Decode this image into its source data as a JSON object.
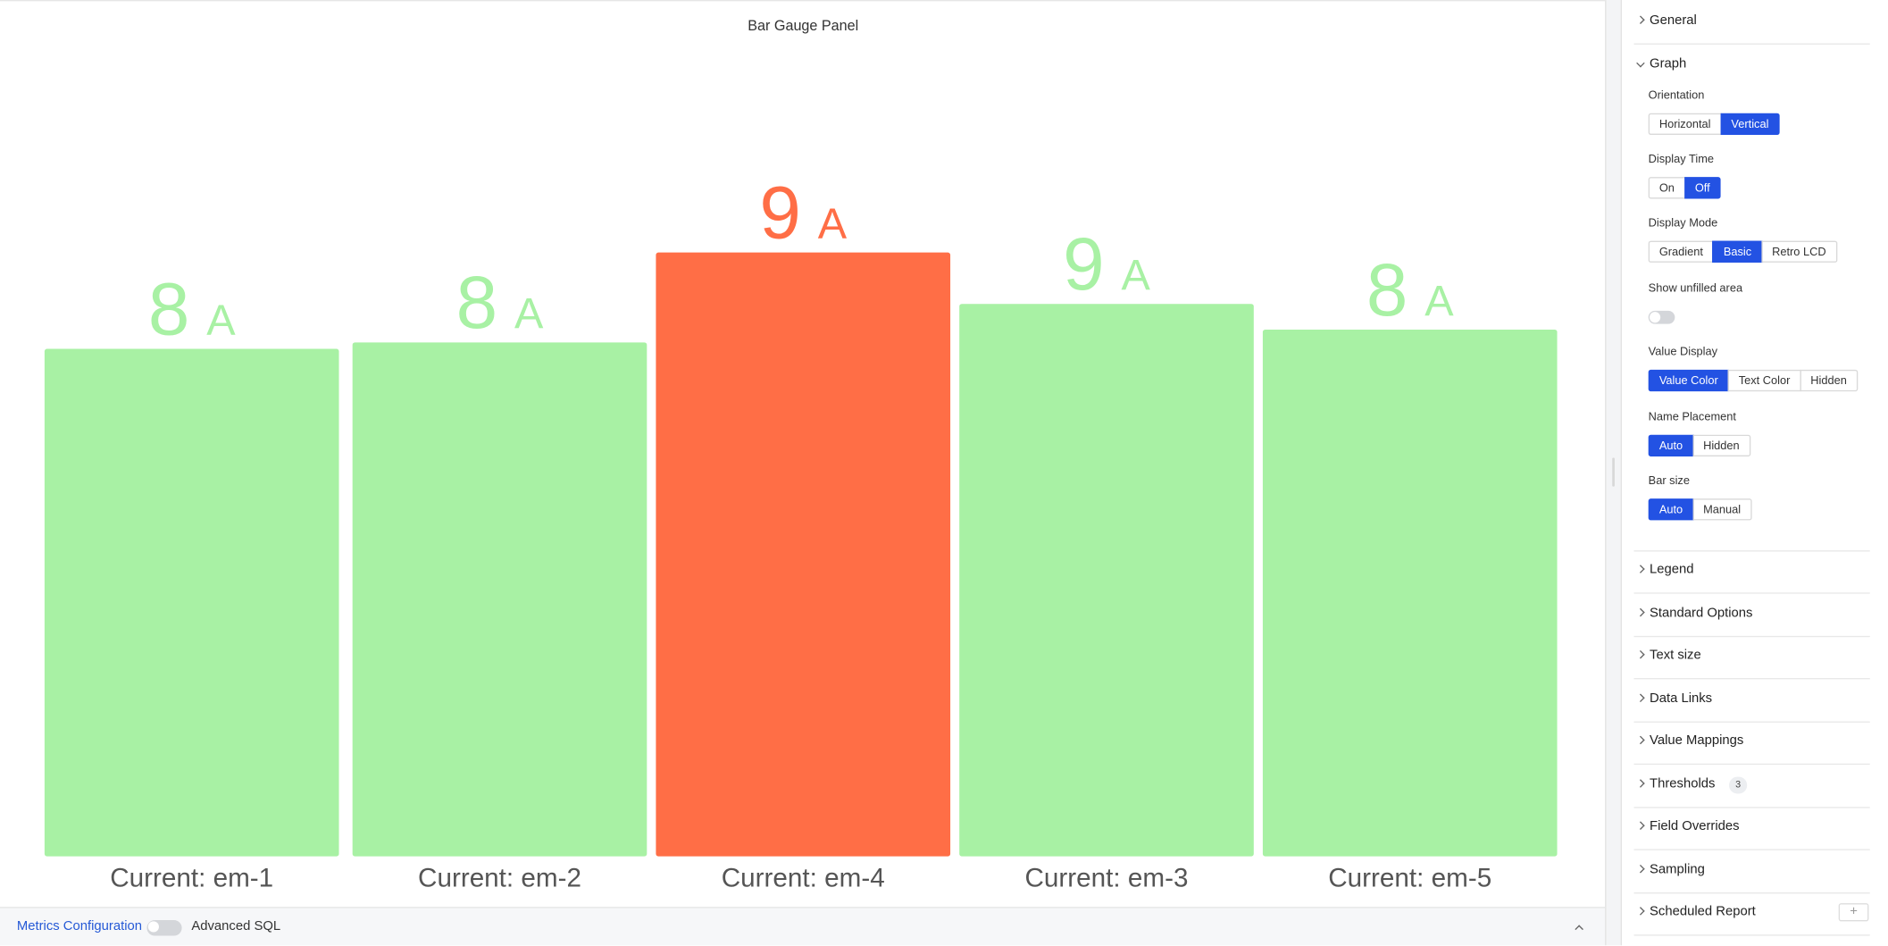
{
  "chart_data": {
    "type": "bar",
    "title": "Bar Gauge Panel",
    "categories": [
      "Current: em-1",
      "Current: em-2",
      "Current: em-4",
      "Current: em-3",
      "Current: em-5"
    ],
    "values": [
      7.9,
      8.0,
      9.4,
      8.6,
      8.2
    ],
    "value_labels": [
      "8",
      "8",
      "9",
      "9",
      "8"
    ],
    "unit": "A",
    "colors": [
      "#a8f1a4",
      "#a8f1a4",
      "#ff6e46",
      "#a8f1a4",
      "#a8f1a4"
    ],
    "ylim": [
      0,
      12
    ]
  },
  "sidebar": {
    "sections": [
      {
        "title": "General"
      },
      {
        "title": "Graph",
        "fields": [
          {
            "label": "Orientation",
            "options": [
              "Horizontal",
              "Vertical"
            ],
            "selected": 1
          },
          {
            "label": "Display Time",
            "options": [
              "On",
              "Off"
            ],
            "selected": 1
          },
          {
            "label": "Display Mode",
            "options": [
              "Gradient",
              "Basic",
              "Retro LCD"
            ],
            "selected": 1
          },
          {
            "label": "Show unfilled area",
            "toggle": false
          },
          {
            "label": "Value Display",
            "options": [
              "Value Color",
              "Text Color",
              "Hidden"
            ],
            "selected": 0
          },
          {
            "label": "Name Placement",
            "options": [
              "Auto",
              "Hidden"
            ],
            "selected": 0
          },
          {
            "label": "Bar size",
            "options": [
              "Auto",
              "Manual"
            ],
            "selected": 0
          }
        ]
      },
      {
        "title": "Legend"
      },
      {
        "title": "Standard Options"
      },
      {
        "title": "Text size"
      },
      {
        "title": "Data Links"
      },
      {
        "title": "Value Mappings"
      },
      {
        "title": "Thresholds",
        "badge": 3
      },
      {
        "title": "Field Overrides"
      },
      {
        "title": "Sampling"
      },
      {
        "title": "Scheduled Report",
        "add": true
      }
    ]
  },
  "footer": {
    "tab": "Metrics Configuration",
    "toggle_label": "Advanced SQL"
  }
}
